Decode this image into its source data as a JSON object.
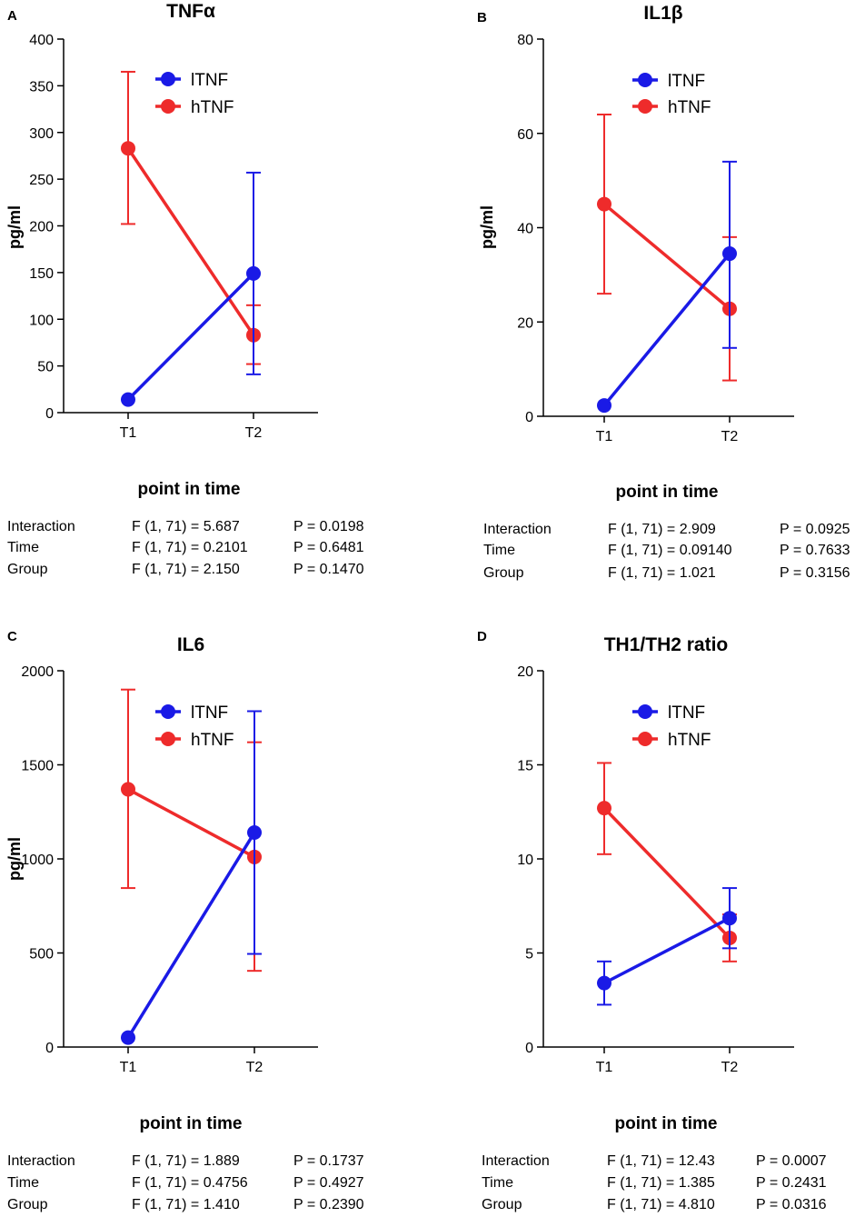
{
  "series_colors": {
    "lTNF": "#1a1ae6",
    "hTNF": "#ee2b2b"
  },
  "legend_labels": [
    "lTNF",
    "hTNF"
  ],
  "chart_data": [
    {
      "panel_label": "A",
      "type": "line",
      "title": "TNFα",
      "xlabel": "point in time",
      "ylabel": "pg/ml",
      "categories": [
        "T1",
        "T2"
      ],
      "ylim": [
        0,
        400
      ],
      "yticks": [
        0,
        50,
        100,
        150,
        200,
        250,
        300,
        350,
        400
      ],
      "ytick_labels": [
        "0",
        "50",
        "100",
        "150",
        "200",
        "250",
        "300",
        "350",
        "400"
      ],
      "series": [
        {
          "name": "lTNF",
          "values": [
            14,
            149
          ],
          "err_low": [
            14,
            41
          ],
          "err_high": [
            14,
            257
          ]
        },
        {
          "name": "hTNF",
          "values": [
            283,
            83
          ],
          "err_low": [
            202,
            52
          ],
          "err_high": [
            365,
            115
          ]
        }
      ],
      "stats": [
        {
          "label": "Interaction",
          "f": "F (1, 71) = 5.687",
          "p": "P = 0.0198"
        },
        {
          "label": "Time",
          "f": "F (1, 71) = 0.2101",
          "p": "P = 0.6481"
        },
        {
          "label": "Group",
          "f": "F (1, 71) = 2.150",
          "p": "P = 0.1470"
        }
      ]
    },
    {
      "panel_label": "B",
      "type": "line",
      "title": "IL1β",
      "xlabel": "point in time",
      "ylabel": "pg/ml",
      "categories": [
        "T1",
        "T2"
      ],
      "ylim": [
        0,
        80
      ],
      "yticks": [
        0,
        20,
        40,
        60,
        80
      ],
      "ytick_labels": [
        "0",
        "20",
        "40",
        "60",
        "80"
      ],
      "series": [
        {
          "name": "lTNF",
          "values": [
            2.3,
            34.5
          ],
          "err_low": [
            2.3,
            14.5
          ],
          "err_high": [
            2.3,
            54
          ]
        },
        {
          "name": "hTNF",
          "values": [
            45,
            22.8
          ],
          "err_low": [
            26,
            7.6
          ],
          "err_high": [
            64,
            38
          ]
        }
      ],
      "stats": [
        {
          "label": "Interaction",
          "f": "F (1, 71) = 2.909",
          "p": "P = 0.0925"
        },
        {
          "label": "Time",
          "f": "F (1, 71) = 0.09140",
          "p": "P = 0.7633"
        },
        {
          "label": "Group",
          "f": "F (1, 71) = 1.021",
          "p": "P = 0.3156"
        }
      ]
    },
    {
      "panel_label": "C",
      "type": "line",
      "title": "IL6",
      "xlabel": "point in time",
      "ylabel": "pg/ml",
      "categories": [
        "T1",
        "T2"
      ],
      "ylim": [
        0,
        2000
      ],
      "yticks": [
        0,
        500,
        1000,
        1500,
        2000
      ],
      "ytick_labels": [
        "0",
        "500",
        "1000",
        "1500",
        "2000"
      ],
      "series": [
        {
          "name": "lTNF",
          "values": [
            50,
            1140
          ],
          "err_low": [
            50,
            495
          ],
          "err_high": [
            50,
            1785
          ]
        },
        {
          "name": "hTNF",
          "values": [
            1370,
            1010
          ],
          "err_low": [
            845,
            405
          ],
          "err_high": [
            1900,
            1620
          ]
        }
      ],
      "stats": [
        {
          "label": "Interaction",
          "f": "F (1, 71) = 1.889",
          "p": "P = 0.1737"
        },
        {
          "label": "Time",
          "f": "F (1, 71) = 0.4756",
          "p": "P = 0.4927"
        },
        {
          "label": "Group",
          "f": "F (1, 71) = 1.410",
          "p": "P = 0.2390"
        }
      ]
    },
    {
      "panel_label": "D",
      "type": "line",
      "title": "TH1/TH2 ratio",
      "xlabel": "point in time",
      "ylabel": "",
      "categories": [
        "T1",
        "T2"
      ],
      "ylim": [
        0,
        20
      ],
      "yticks": [
        0,
        5,
        10,
        15,
        20
      ],
      "ytick_labels": [
        "0",
        "5",
        "10",
        "15",
        "20"
      ],
      "series": [
        {
          "name": "lTNF",
          "values": [
            3.4,
            6.85
          ],
          "err_low": [
            2.25,
            5.25
          ],
          "err_high": [
            4.55,
            8.45
          ]
        },
        {
          "name": "hTNF",
          "values": [
            12.7,
            5.8
          ],
          "err_low": [
            10.25,
            4.55
          ],
          "err_high": [
            15.1,
            7.05
          ]
        }
      ],
      "stats": [
        {
          "label": "Interaction",
          "f": "F (1, 71) = 12.43",
          "p": "P = 0.0007"
        },
        {
          "label": "Time",
          "f": "F (1, 71) = 1.385",
          "p": "P = 0.2431"
        },
        {
          "label": "Group",
          "f": "F (1, 71) = 4.810",
          "p": "P = 0.0316"
        }
      ]
    }
  ]
}
